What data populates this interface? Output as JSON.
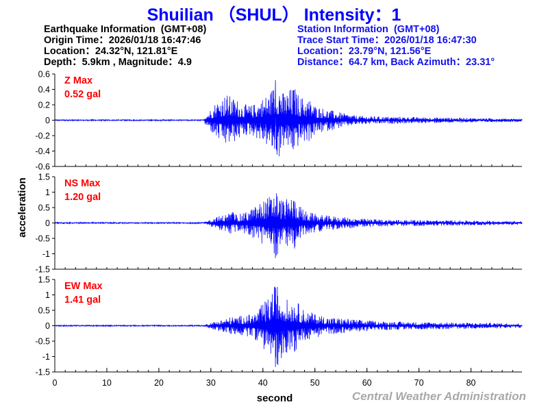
{
  "header": {
    "title": "Shuilian （SHUL） Intensity：1",
    "earthquake": {
      "heading": "Earthquake Information  (GMT+08)",
      "origin_time": "Origin Time：2026/01/18 16:47:46",
      "location": "Location：24.32°N, 121.81°E",
      "depth_mag": "Depth：5.9km , Magnitude：4.9"
    },
    "station": {
      "heading": "Station Information  (GMT+08)",
      "trace_start": "Trace Start Time：2026/01/18 16:47:30",
      "location": "Location：23.79°N, 121.56°E",
      "distance": "Distance：64.7 km, Back Azimuth：23.31°"
    }
  },
  "footer": {
    "credit": "Central Weather Administration"
  },
  "colors": {
    "trace": "#0000ff",
    "label": "#ff0000",
    "axis": "#000000",
    "title": "#0000ff"
  },
  "chart_data": [
    {
      "type": "line",
      "component": "Z",
      "label_line1": "Z Max",
      "label_line2": "0.52 gal",
      "ylim": [
        -0.6,
        0.6
      ],
      "yticks": [
        0.6,
        0.4,
        0.2,
        0,
        -0.2,
        -0.4,
        -0.6
      ],
      "ytick_labels": [
        "0.6",
        "0.4",
        "0.2",
        "0",
        "-0.2",
        "-0.4",
        "-0.6"
      ],
      "peak_abs": 0.52,
      "series": [
        {
          "values": [
            [
              0,
              0
            ],
            [
              28.5,
              0
            ],
            [
              29,
              0.08
            ],
            [
              30,
              0.15
            ],
            [
              31,
              0.25
            ],
            [
              32,
              0.3
            ],
            [
              33,
              0.35
            ],
            [
              34,
              0.3
            ],
            [
              35,
              0.28
            ],
            [
              36,
              0.22
            ],
            [
              37,
              0.2
            ],
            [
              38,
              0.2
            ],
            [
              39,
              0.25
            ],
            [
              40,
              0.3
            ],
            [
              41,
              0.35
            ],
            [
              42,
              0.45
            ],
            [
              43,
              0.52
            ],
            [
              44,
              0.35
            ],
            [
              45,
              0.4
            ],
            [
              46,
              0.45
            ],
            [
              47,
              0.32
            ],
            [
              48,
              0.3
            ],
            [
              49,
              0.28
            ],
            [
              50,
              0.2
            ],
            [
              52,
              0.15
            ],
            [
              55,
              0.1
            ],
            [
              58,
              0.06
            ],
            [
              62,
              0.05
            ],
            [
              70,
              0.04
            ],
            [
              80,
              0.03
            ],
            [
              89.5,
              0.02
            ]
          ]
        }
      ]
    },
    {
      "type": "line",
      "component": "NS",
      "label_line1": "NS Max",
      "label_line2": "1.20 gal",
      "ylim": [
        -1.5,
        1.5
      ],
      "yticks": [
        1.5,
        1,
        0.5,
        0,
        -0.5,
        -1,
        -1.5
      ],
      "ytick_labels": [
        "1.5",
        "1",
        "0.5",
        "0",
        "-0.5",
        "-1",
        "-1.5"
      ],
      "peak_abs": 1.2,
      "series": [
        {
          "values": [
            [
              0,
              0
            ],
            [
              28.5,
              0
            ],
            [
              29,
              0.05
            ],
            [
              30,
              0.12
            ],
            [
              31,
              0.2
            ],
            [
              32,
              0.25
            ],
            [
              33,
              0.3
            ],
            [
              34,
              0.4
            ],
            [
              35,
              0.3
            ],
            [
              36,
              0.3
            ],
            [
              37,
              0.4
            ],
            [
              38,
              0.5
            ],
            [
              39,
              0.6
            ],
            [
              40,
              0.75
            ],
            [
              41,
              0.85
            ],
            [
              42,
              1.0
            ],
            [
              42.5,
              1.2
            ],
            [
              43,
              0.9
            ],
            [
              44,
              0.75
            ],
            [
              45,
              0.8
            ],
            [
              46,
              0.9
            ],
            [
              47,
              0.6
            ],
            [
              48,
              0.4
            ],
            [
              50,
              0.3
            ],
            [
              52,
              0.25
            ],
            [
              55,
              0.2
            ],
            [
              58,
              0.15
            ],
            [
              62,
              0.12
            ],
            [
              70,
              0.1
            ],
            [
              80,
              0.08
            ],
            [
              89.5,
              0.06
            ]
          ]
        }
      ]
    },
    {
      "type": "line",
      "component": "EW",
      "label_line1": "EW Max",
      "label_line2": "1.41 gal",
      "ylim": [
        -1.5,
        1.5
      ],
      "yticks": [
        1.5,
        1,
        0.5,
        0,
        -0.5,
        -1,
        -1.5
      ],
      "ytick_labels": [
        "1.5",
        "1",
        "0.5",
        "0",
        "-0.5",
        "-1",
        "-1.5"
      ],
      "peak_abs": 1.41,
      "series": [
        {
          "values": [
            [
              0,
              0
            ],
            [
              28.5,
              0
            ],
            [
              29,
              0.05
            ],
            [
              30,
              0.1
            ],
            [
              31,
              0.15
            ],
            [
              32,
              0.2
            ],
            [
              33,
              0.25
            ],
            [
              34,
              0.3
            ],
            [
              35,
              0.3
            ],
            [
              36,
              0.35
            ],
            [
              37,
              0.35
            ],
            [
              38,
              0.4
            ],
            [
              39,
              0.5
            ],
            [
              40,
              0.75
            ],
            [
              41,
              0.9
            ],
            [
              42,
              1.2
            ],
            [
              42.5,
              1.41
            ],
            [
              43,
              1.3
            ],
            [
              44,
              1.0
            ],
            [
              45,
              0.8
            ],
            [
              46,
              0.9
            ],
            [
              47,
              0.7
            ],
            [
              48,
              0.5
            ],
            [
              50,
              0.4
            ],
            [
              52,
              0.3
            ],
            [
              55,
              0.25
            ],
            [
              58,
              0.2
            ],
            [
              62,
              0.15
            ],
            [
              70,
              0.12
            ],
            [
              80,
              0.1
            ],
            [
              89.5,
              0.08
            ]
          ]
        }
      ]
    }
  ],
  "x_axis": {
    "label": "second",
    "xlim": [
      0,
      89.8
    ],
    "ticks": [
      0,
      10,
      20,
      30,
      40,
      50,
      60,
      70,
      80
    ],
    "tick_labels": [
      "0",
      "10",
      "20",
      "30",
      "40",
      "50",
      "60",
      "70",
      "80"
    ]
  },
  "y_axis": {
    "label": "acceleration"
  }
}
